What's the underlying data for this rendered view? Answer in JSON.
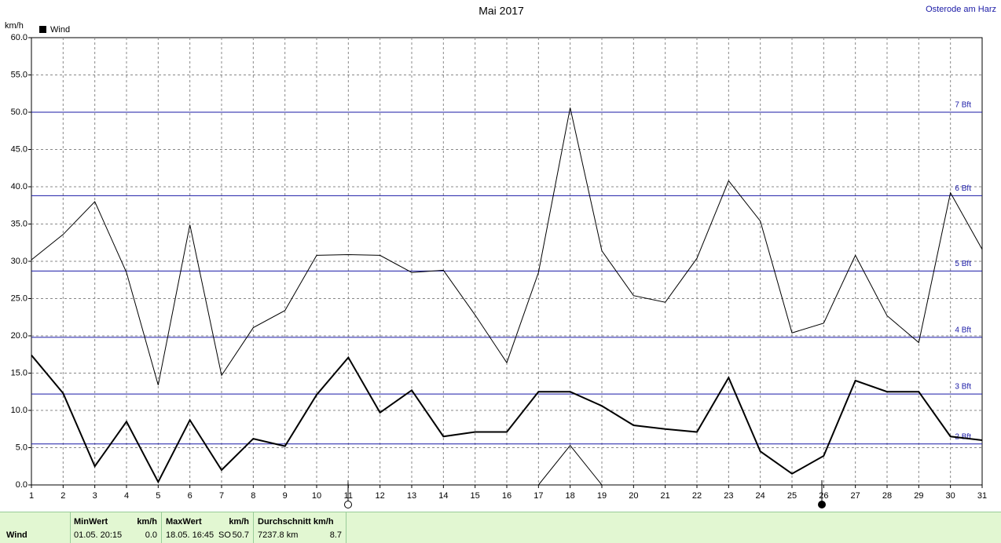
{
  "chart_data": {
    "type": "line",
    "title": "Mai 2017",
    "location": "Osterode am Harz",
    "y_unit": "km/h",
    "x": [
      1,
      2,
      3,
      4,
      5,
      6,
      7,
      8,
      9,
      10,
      11,
      12,
      13,
      14,
      15,
      16,
      17,
      18,
      19,
      20,
      21,
      22,
      23,
      24,
      25,
      26,
      27,
      28,
      29,
      30,
      31
    ],
    "xlim": [
      1,
      31
    ],
    "xticks": [
      1,
      2,
      3,
      4,
      5,
      6,
      7,
      8,
      9,
      10,
      11,
      12,
      13,
      14,
      15,
      16,
      17,
      18,
      19,
      20,
      21,
      22,
      23,
      24,
      25,
      26,
      27,
      28,
      29,
      30,
      31
    ],
    "ylim": [
      0,
      60
    ],
    "yticks": [
      {
        "value": 0,
        "label": "0.0"
      },
      {
        "value": 5,
        "label": "5.0"
      },
      {
        "value": 10,
        "label": "10.0"
      },
      {
        "value": 15,
        "label": "15.0"
      },
      {
        "value": 20,
        "label": "20.0"
      },
      {
        "value": 25,
        "label": "25.0"
      },
      {
        "value": 30,
        "label": "30.0"
      },
      {
        "value": 35,
        "label": "35.0"
      },
      {
        "value": 40,
        "label": "40.0"
      },
      {
        "value": 45,
        "label": "45.0"
      },
      {
        "value": 50,
        "label": "50.0"
      },
      {
        "value": 55,
        "label": "55.0"
      },
      {
        "value": 60,
        "label": "60.0"
      }
    ],
    "grid": true,
    "series": [
      {
        "name": "Wind",
        "color": "#000000",
        "values": [
          17.4,
          12.3,
          2.5,
          8.5,
          0.4,
          8.7,
          2.0,
          6.2,
          5.2,
          12.1,
          17.1,
          9.7,
          12.7,
          6.5,
          7.1,
          7.1,
          12.5,
          12.5,
          10.6,
          8.0,
          7.5,
          7.1,
          14.4,
          4.5,
          1.5,
          3.9,
          14.0,
          12.5,
          12.5,
          6.5,
          6.0
        ]
      },
      {
        "color": "#000000",
        "values": [
          30.2,
          33.6,
          38.0,
          28.5,
          13.4,
          34.9,
          14.7,
          21.1,
          23.4,
          30.8,
          30.9,
          30.8,
          28.5,
          28.8,
          22.8,
          16.4,
          28.5,
          50.6,
          31.4,
          25.4,
          24.5,
          30.4,
          40.8,
          35.4,
          20.4,
          21.7,
          30.8,
          22.7,
          19.1,
          39.2,
          31.6
        ]
      },
      {
        "color": "#000000",
        "values": [
          0,
          0,
          0,
          0,
          0,
          0,
          0,
          0,
          0,
          0,
          0,
          0,
          0,
          0,
          0,
          0,
          0,
          5.3,
          0,
          0,
          0,
          0,
          0,
          0,
          0,
          0,
          0,
          0,
          0,
          0,
          0
        ]
      }
    ],
    "bft_lines": [
      {
        "value": 50.0,
        "label": "7 Bft"
      },
      {
        "value": 38.8,
        "label": "6 Bft"
      },
      {
        "value": 28.7,
        "label": "5 Bft"
      },
      {
        "value": 19.8,
        "label": "4 Bft"
      },
      {
        "value": 12.2,
        "label": "3 Bft"
      },
      {
        "value": 5.5,
        "label": "2 Bft"
      }
    ]
  },
  "stats": {
    "label": "Wind",
    "min": {
      "header": "MinWert",
      "unit": "km/h",
      "time": "01.05.  20:15",
      "value": "0.0"
    },
    "max": {
      "header": "MaxWert",
      "unit": "km/h",
      "time": "18.05.  16:45",
      "dir": "SO",
      "value": "50.7"
    },
    "avg": {
      "header": "Durchschnitt km/h",
      "distance": "7237.8 km",
      "value": "8.7"
    }
  }
}
